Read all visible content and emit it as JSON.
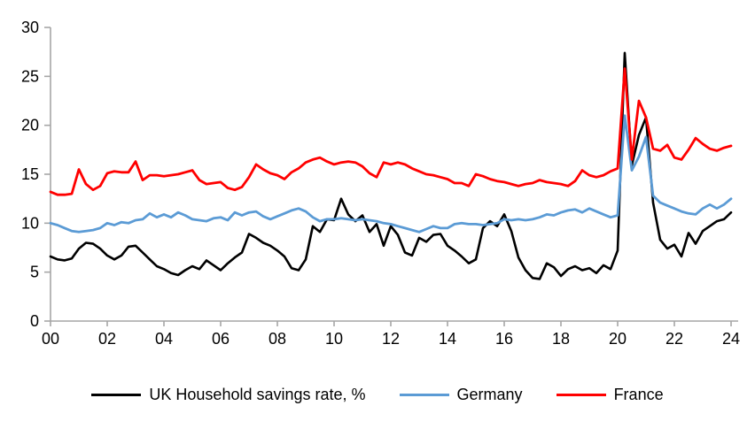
{
  "chart_data": {
    "type": "line",
    "title": "",
    "frequency": "quarterly",
    "x_start": "2000 Q1",
    "x_end": "2024 Q1",
    "x_tick_labels": [
      "00",
      "02",
      "04",
      "06",
      "08",
      "10",
      "12",
      "14",
      "16",
      "18",
      "20",
      "22",
      "24"
    ],
    "y_tick_labels": [
      "0",
      "5",
      "10",
      "15",
      "20",
      "25",
      "30"
    ],
    "y_range": [
      0,
      30
    ],
    "grid": false,
    "legend_position": "bottom",
    "axis_color": "#A6A6A6",
    "tick_label_color": "#000000",
    "series": [
      {
        "name": "UK Household savings rate, %",
        "color": "#000000",
        "values": [
          6.6,
          6.3,
          6.2,
          6.4,
          7.4,
          8.0,
          7.9,
          7.4,
          6.7,
          6.3,
          6.7,
          7.6,
          7.7,
          7.0,
          6.3,
          5.6,
          5.3,
          4.9,
          4.7,
          5.2,
          5.6,
          5.3,
          6.2,
          5.7,
          5.2,
          5.9,
          6.5,
          7.0,
          8.9,
          8.5,
          8.0,
          7.7,
          7.2,
          6.6,
          5.4,
          5.2,
          6.3,
          9.7,
          9.1,
          10.4,
          10.3,
          12.5,
          10.9,
          10.2,
          10.8,
          9.1,
          9.9,
          7.7,
          9.7,
          8.8,
          7.0,
          6.7,
          8.5,
          8.1,
          8.8,
          8.9,
          7.7,
          7.2,
          6.6,
          5.9,
          6.3,
          9.5,
          10.2,
          9.7,
          10.9,
          9.2,
          6.5,
          5.2,
          4.4,
          4.3,
          5.9,
          5.5,
          4.6,
          5.3,
          5.6,
          5.2,
          5.4,
          4.9,
          5.7,
          5.3,
          7.2,
          27.4,
          15.9,
          19.0,
          20.8,
          12.1,
          8.3,
          7.4,
          7.8,
          6.6,
          9.0,
          7.9,
          9.2,
          9.7,
          10.2,
          10.4,
          11.1
        ]
      },
      {
        "name": "Germany",
        "color": "#5B9BD5",
        "values": [
          10.0,
          9.8,
          9.5,
          9.2,
          9.1,
          9.2,
          9.3,
          9.5,
          10.0,
          9.8,
          10.1,
          10.0,
          10.3,
          10.4,
          11.0,
          10.6,
          10.9,
          10.6,
          11.1,
          10.8,
          10.4,
          10.3,
          10.2,
          10.5,
          10.6,
          10.3,
          11.1,
          10.8,
          11.1,
          11.2,
          10.7,
          10.4,
          10.7,
          11.0,
          11.3,
          11.5,
          11.2,
          10.6,
          10.2,
          10.4,
          10.4,
          10.5,
          10.4,
          10.3,
          10.4,
          10.3,
          10.2,
          10.0,
          9.9,
          9.7,
          9.5,
          9.3,
          9.1,
          9.4,
          9.7,
          9.5,
          9.5,
          9.9,
          10.0,
          9.9,
          9.9,
          9.8,
          9.9,
          10.0,
          10.4,
          10.3,
          10.4,
          10.3,
          10.4,
          10.6,
          10.9,
          10.8,
          11.1,
          11.3,
          11.4,
          11.1,
          11.5,
          11.2,
          10.9,
          10.6,
          10.8,
          21.0,
          15.4,
          16.8,
          18.8,
          12.8,
          12.1,
          11.8,
          11.5,
          11.2,
          11.0,
          10.9,
          11.5,
          11.9,
          11.5,
          11.9,
          12.5
        ]
      },
      {
        "name": "France",
        "color": "#FF0000",
        "values": [
          13.2,
          12.9,
          12.9,
          13.0,
          15.5,
          14.0,
          13.4,
          13.8,
          15.1,
          15.3,
          15.2,
          15.2,
          16.3,
          14.4,
          14.9,
          14.9,
          14.8,
          14.9,
          15.0,
          15.2,
          15.4,
          14.4,
          14.0,
          14.1,
          14.2,
          13.6,
          13.4,
          13.7,
          14.7,
          16.0,
          15.5,
          15.1,
          14.9,
          14.5,
          15.2,
          15.6,
          16.2,
          16.5,
          16.7,
          16.3,
          16.0,
          16.2,
          16.3,
          16.2,
          15.8,
          15.1,
          14.7,
          16.2,
          16.0,
          16.2,
          16.0,
          15.6,
          15.3,
          15.0,
          14.9,
          14.7,
          14.5,
          14.1,
          14.1,
          13.8,
          15.0,
          14.8,
          14.5,
          14.3,
          14.2,
          14.0,
          13.8,
          14.0,
          14.1,
          14.4,
          14.2,
          14.1,
          14.0,
          13.8,
          14.3,
          15.4,
          14.9,
          14.7,
          14.9,
          15.3,
          15.6,
          25.8,
          16.5,
          22.5,
          20.8,
          17.6,
          17.4,
          18.0,
          16.7,
          16.5,
          17.5,
          18.7,
          18.1,
          17.6,
          17.4,
          17.7,
          17.9
        ]
      }
    ]
  }
}
